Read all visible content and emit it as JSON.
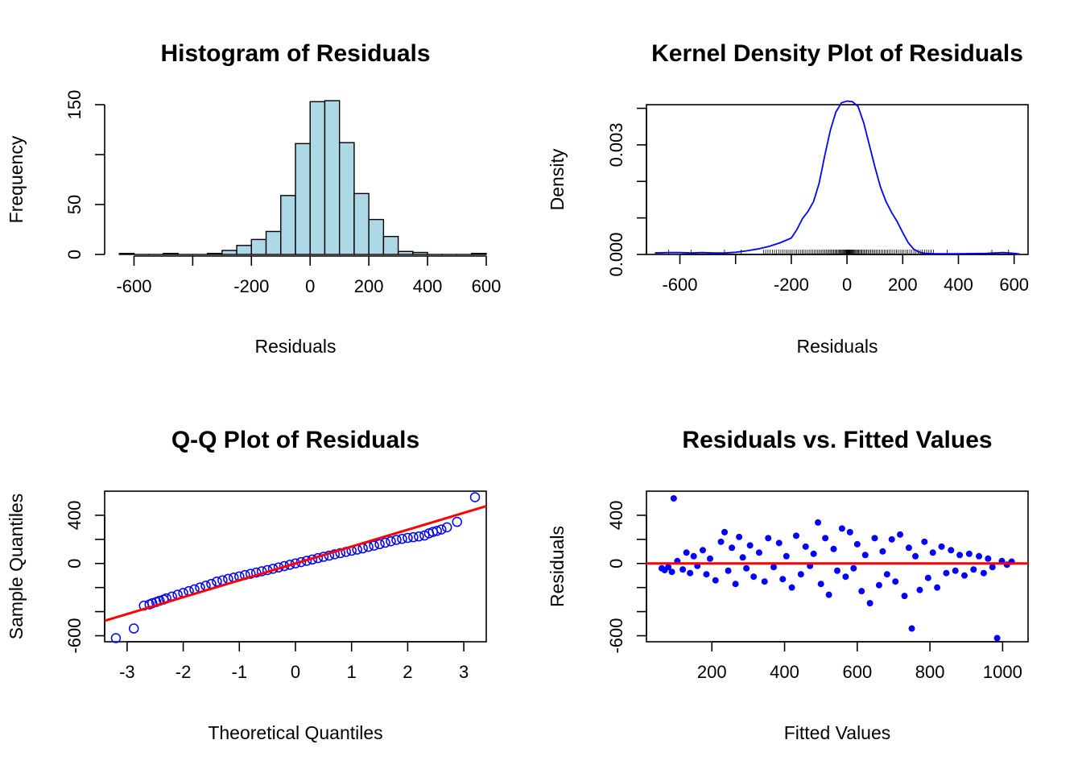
{
  "chart_data": [
    {
      "type": "bar",
      "title": "Histogram of Residuals",
      "xlabel": "Residuals",
      "ylabel": "Frequency",
      "xlim": [
        -700,
        600
      ],
      "ylim": [
        0,
        150
      ],
      "x_ticks": [
        -600,
        -400,
        -200,
        0,
        200,
        400,
        600
      ],
      "x_tick_labels": [
        "-600",
        "",
        "-200",
        "0",
        "200",
        "400",
        "600"
      ],
      "y_ticks": [
        0,
        50,
        100,
        150
      ],
      "y_tick_labels": [
        "0",
        "50",
        "",
        "150"
      ],
      "bin_width": 50,
      "bins_start": [
        -650,
        -600,
        -550,
        -500,
        -450,
        -400,
        -350,
        -300,
        -250,
        -200,
        -150,
        -100,
        -50,
        0,
        50,
        100,
        150,
        200,
        250,
        300,
        350,
        400,
        450,
        500,
        550
      ],
      "values": [
        1,
        0,
        0,
        1,
        0,
        0,
        1,
        4,
        9,
        15,
        23,
        59,
        111,
        153,
        154,
        112,
        61,
        35,
        18,
        3,
        2,
        0,
        0,
        0,
        1
      ],
      "bar_color": "#add8e6"
    },
    {
      "type": "line",
      "title": "Kernel Density Plot of Residuals",
      "xlabel": "Residuals",
      "ylabel": "Density",
      "xlim": [
        -720,
        650
      ],
      "ylim": [
        0,
        0.0041
      ],
      "x_ticks": [
        -600,
        -400,
        -200,
        0,
        200,
        400,
        600
      ],
      "x_tick_labels": [
        "-600",
        "",
        "-200",
        "0",
        "200",
        "400",
        "600"
      ],
      "y_ticks": [
        0,
        0.001,
        0.002,
        0.003,
        0.004
      ],
      "y_tick_labels": [
        "0.000",
        "",
        "",
        "0.003",
        ""
      ],
      "line_color": "#0000ff",
      "x": [
        -690,
        -640,
        -600,
        -560,
        -520,
        -480,
        -440,
        -400,
        -360,
        -320,
        -280,
        -240,
        -200,
        -180,
        -160,
        -140,
        -120,
        -100,
        -80,
        -60,
        -40,
        -20,
        0,
        20,
        40,
        60,
        80,
        100,
        120,
        140,
        160,
        180,
        200,
        220,
        240,
        260,
        280,
        320,
        400,
        500,
        560,
        600,
        620
      ],
      "y": [
        4e-05,
        5e-05,
        5e-05,
        4e-05,
        5e-05,
        4e-05,
        4e-05,
        6e-05,
        0.0001,
        0.00015,
        0.00022,
        0.00032,
        0.00045,
        0.00068,
        0.00098,
        0.00118,
        0.00145,
        0.00195,
        0.0027,
        0.0034,
        0.0039,
        0.00415,
        0.0042,
        0.00418,
        0.00405,
        0.0036,
        0.003,
        0.0024,
        0.00185,
        0.00145,
        0.00115,
        0.0009,
        0.0006,
        0.00032,
        0.00014,
        6e-05,
        3e-05,
        2e-05,
        2e-05,
        3e-05,
        5e-05,
        3e-05,
        1e-05
      ],
      "rug_range": [
        -300,
        310
      ],
      "rug_outliers": [
        -640,
        -560,
        -440,
        -380,
        360,
        520,
        580
      ]
    },
    {
      "type": "scatter",
      "title": "Q-Q Plot of Residuals",
      "xlabel": "Theoretical Quantiles",
      "ylabel": "Sample Quantiles",
      "xlim": [
        -3.4,
        3.4
      ],
      "ylim": [
        -650,
        600
      ],
      "x_ticks": [
        -3,
        -2,
        -1,
        0,
        1,
        2,
        3
      ],
      "x_tick_labels": [
        "-3",
        "-2",
        "-1",
        "0",
        "1",
        "2",
        "3"
      ],
      "y_ticks": [
        -600,
        -400,
        -200,
        0,
        200,
        400
      ],
      "y_tick_labels": [
        "-600",
        "",
        "",
        "0",
        "",
        "400"
      ],
      "point_color": "#0000ff",
      "reference_line": {
        "slope": 140,
        "intercept": 0,
        "color": "#ff0000"
      },
      "points": [
        [
          -3.2,
          -620
        ],
        [
          -2.88,
          -540
        ],
        [
          -2.7,
          -350
        ],
        [
          -2.6,
          -340
        ],
        [
          -2.55,
          -330
        ],
        [
          -2.48,
          -320
        ],
        [
          -2.42,
          -310
        ],
        [
          -2.35,
          -300
        ],
        [
          -2.3,
          -290
        ],
        [
          -2.2,
          -275
        ],
        [
          -2.1,
          -260
        ],
        [
          -2.0,
          -245
        ],
        [
          -1.9,
          -230
        ],
        [
          -1.8,
          -215
        ],
        [
          -1.7,
          -200
        ],
        [
          -1.6,
          -185
        ],
        [
          -1.5,
          -170
        ],
        [
          -1.4,
          -150
        ],
        [
          -1.3,
          -140
        ],
        [
          -1.2,
          -128
        ],
        [
          -1.1,
          -118
        ],
        [
          -1.0,
          -108
        ],
        [
          -0.9,
          -96
        ],
        [
          -0.8,
          -86
        ],
        [
          -0.7,
          -76
        ],
        [
          -0.6,
          -65
        ],
        [
          -0.5,
          -55
        ],
        [
          -0.4,
          -44
        ],
        [
          -0.3,
          -33
        ],
        [
          -0.2,
          -22
        ],
        [
          -0.1,
          -11
        ],
        [
          0.0,
          0
        ],
        [
          0.1,
          11
        ],
        [
          0.2,
          22
        ],
        [
          0.3,
          33
        ],
        [
          0.4,
          44
        ],
        [
          0.5,
          55
        ],
        [
          0.6,
          65
        ],
        [
          0.7,
          76
        ],
        [
          0.8,
          86
        ],
        [
          0.9,
          96
        ],
        [
          1.0,
          106
        ],
        [
          1.1,
          115
        ],
        [
          1.2,
          125
        ],
        [
          1.3,
          138
        ],
        [
          1.4,
          148
        ],
        [
          1.5,
          160
        ],
        [
          1.6,
          172
        ],
        [
          1.7,
          184
        ],
        [
          1.8,
          196
        ],
        [
          1.9,
          204
        ],
        [
          2.0,
          212
        ],
        [
          2.1,
          218
        ],
        [
          2.2,
          224
        ],
        [
          2.3,
          232
        ],
        [
          2.38,
          250
        ],
        [
          2.45,
          262
        ],
        [
          2.52,
          270
        ],
        [
          2.6,
          282
        ],
        [
          2.7,
          300
        ],
        [
          2.88,
          345
        ],
        [
          3.2,
          550
        ]
      ]
    },
    {
      "type": "scatter",
      "title": "Residuals vs. Fitted Values",
      "xlabel": "Fitted Values",
      "ylabel": "Residuals",
      "xlim": [
        20,
        1070
      ],
      "ylim": [
        -650,
        600
      ],
      "x_ticks": [
        200,
        400,
        600,
        800,
        1000
      ],
      "x_tick_labels": [
        "200",
        "400",
        "600",
        "800",
        "1000"
      ],
      "y_ticks": [
        -600,
        -400,
        -200,
        0,
        200,
        400
      ],
      "y_tick_labels": [
        "-600",
        "",
        "",
        "0",
        "",
        "400"
      ],
      "point_color": "#0000ff",
      "reference_line": {
        "y": 0,
        "color": "#ff0000"
      },
      "points": [
        [
          62,
          -40
        ],
        [
          70,
          -55
        ],
        [
          80,
          -30
        ],
        [
          90,
          -70
        ],
        [
          95,
          540
        ],
        [
          105,
          20
        ],
        [
          120,
          -50
        ],
        [
          130,
          90
        ],
        [
          140,
          -80
        ],
        [
          150,
          60
        ],
        [
          160,
          -20
        ],
        [
          175,
          110
        ],
        [
          185,
          -90
        ],
        [
          195,
          40
        ],
        [
          210,
          -140
        ],
        [
          225,
          180
        ],
        [
          235,
          260
        ],
        [
          245,
          -60
        ],
        [
          255,
          130
        ],
        [
          265,
          -170
        ],
        [
          275,
          220
        ],
        [
          285,
          50
        ],
        [
          295,
          -40
        ],
        [
          305,
          150
        ],
        [
          315,
          -110
        ],
        [
          330,
          90
        ],
        [
          345,
          -150
        ],
        [
          355,
          210
        ],
        [
          370,
          -30
        ],
        [
          385,
          170
        ],
        [
          395,
          -130
        ],
        [
          405,
          60
        ],
        [
          420,
          -200
        ],
        [
          432,
          230
        ],
        [
          445,
          -90
        ],
        [
          458,
          140
        ],
        [
          470,
          -20
        ],
        [
          480,
          80
        ],
        [
          492,
          340
        ],
        [
          500,
          -170
        ],
        [
          512,
          210
        ],
        [
          522,
          -260
        ],
        [
          535,
          120
        ],
        [
          545,
          -60
        ],
        [
          558,
          290
        ],
        [
          568,
          -110
        ],
        [
          580,
          260
        ],
        [
          590,
          -40
        ],
        [
          600,
          160
        ],
        [
          612,
          -230
        ],
        [
          622,
          70
        ],
        [
          635,
          -330
        ],
        [
          648,
          210
        ],
        [
          660,
          -180
        ],
        [
          670,
          100
        ],
        [
          682,
          -90
        ],
        [
          695,
          200
        ],
        [
          705,
          -150
        ],
        [
          718,
          240
        ],
        [
          730,
          -270
        ],
        [
          742,
          130
        ],
        [
          750,
          -540
        ],
        [
          760,
          60
        ],
        [
          772,
          -220
        ],
        [
          785,
          180
        ],
        [
          795,
          -120
        ],
        [
          808,
          90
        ],
        [
          820,
          -200
        ],
        [
          832,
          140
        ],
        [
          845,
          -80
        ],
        [
          858,
          110
        ],
        [
          870,
          -60
        ],
        [
          882,
          70
        ],
        [
          895,
          -100
        ],
        [
          908,
          80
        ],
        [
          920,
          -50
        ],
        [
          935,
          60
        ],
        [
          948,
          -80
        ],
        [
          960,
          40
        ],
        [
          972,
          -30
        ],
        [
          985,
          -620
        ],
        [
          998,
          20
        ],
        [
          1012,
          -10
        ],
        [
          1025,
          15
        ]
      ]
    }
  ]
}
